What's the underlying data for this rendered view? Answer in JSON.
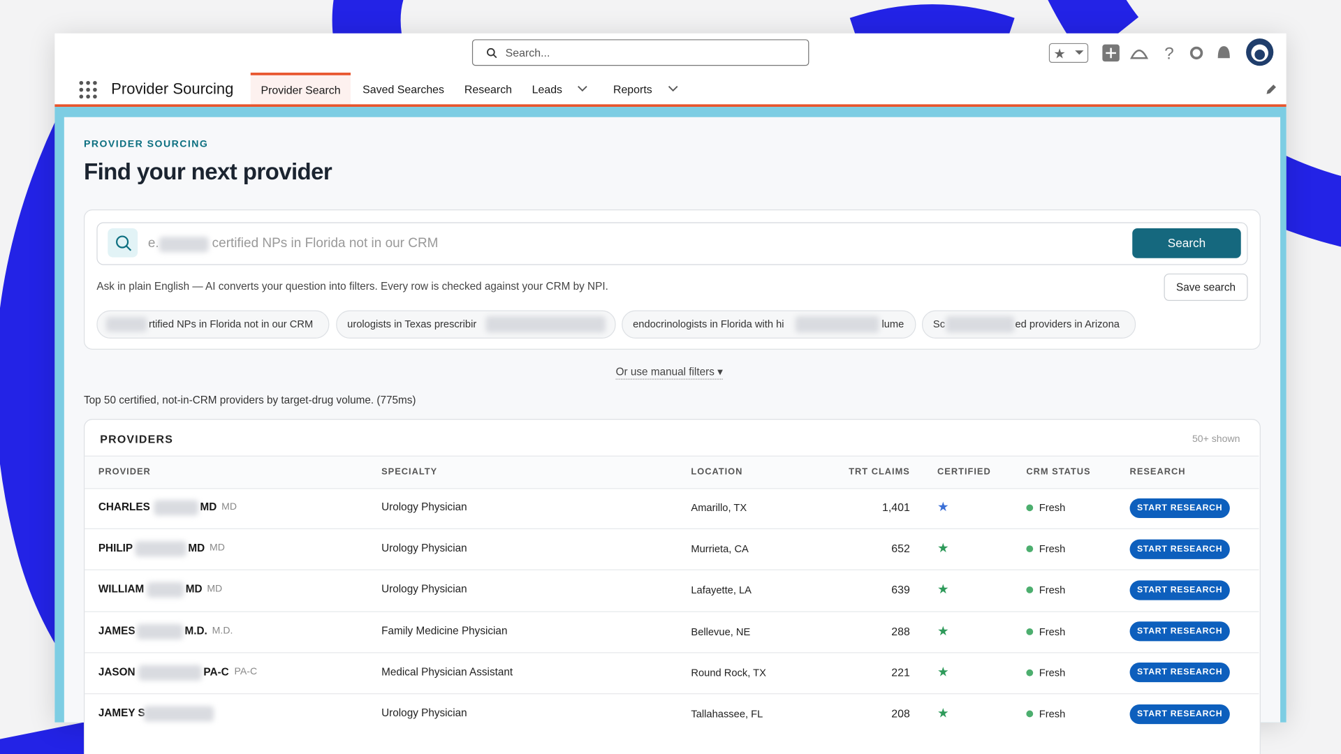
{
  "header": {
    "search_placeholder": "Search...",
    "app_name": "Provider Sourcing",
    "tabs": [
      "Provider Search",
      "Saved Searches",
      "Research",
      "Leads",
      "Reports"
    ]
  },
  "page": {
    "eyebrow": "PROVIDER SOURCING",
    "title": "Find your next provider",
    "query": {
      "placeholder_start": "e.",
      "placeholder_end": "certified NPs in Florida not in our CRM",
      "search_button": "Search",
      "help": "Ask in plain English — AI converts your question into filters. Every row is checked against your CRM by NPI.",
      "save_button": "Save search"
    },
    "examples": [
      {
        "visible_end": "rtified NPs in Florida not in our CRM"
      },
      {
        "visible_start": "urologists in Texas prescribir"
      },
      {
        "visible_start": "endocrinologists in Florida with hi",
        "visible_end": "lume"
      },
      {
        "visible_start": "Sc",
        "visible_end": "ed providers in Arizona"
      }
    ],
    "manual_filters": "Or use manual filters ▾",
    "summary": "Top 50 certified, not-in-CRM providers by target-drug volume. (775ms)"
  },
  "table": {
    "title": "PROVIDERS",
    "count": "50+ shown",
    "columns": [
      "PROVIDER",
      "SPECIALTY",
      "LOCATION",
      "TRT CLAIMS",
      "CERTIFIED",
      "CRM STATUS",
      "RESEARCH"
    ],
    "rows": [
      {
        "first": "CHARLES",
        "suffix": "MD",
        "credential": "MD",
        "specialty": "Urology Physician",
        "location": "Amarillo, TX",
        "claims": "1,401",
        "status": "Fresh",
        "action": "START RESEARCH"
      },
      {
        "first": "PHILIP",
        "suffix": "MD",
        "credential": "MD",
        "specialty": "Urology Physician",
        "location": "Murrieta, CA",
        "claims": "652",
        "status": "Fresh",
        "action": "START RESEARCH"
      },
      {
        "first": "WILLIAM",
        "suffix": "MD",
        "credential": "MD",
        "specialty": "Urology Physician",
        "location": "Lafayette, LA",
        "claims": "639",
        "status": "Fresh",
        "action": "START RESEARCH"
      },
      {
        "first": "JAMES",
        "suffix": "M.D.",
        "credential": "M.D.",
        "specialty": "Family Medicine Physician",
        "location": "Bellevue, NE",
        "claims": "288",
        "status": "Fresh",
        "action": "START RESEARCH"
      },
      {
        "first": "JASON",
        "suffix": "PA-C",
        "credential": "PA-C",
        "specialty": "Medical Physician Assistant",
        "location": "Round Rock, TX",
        "claims": "221",
        "status": "Fresh",
        "action": "START RESEARCH"
      },
      {
        "first": "JAMEY S",
        "specialty": "Urology Physician",
        "location": "Tallahassee, FL",
        "claims": "208",
        "status": "Fresh",
        "action": "START RESEARCH"
      }
    ]
  }
}
